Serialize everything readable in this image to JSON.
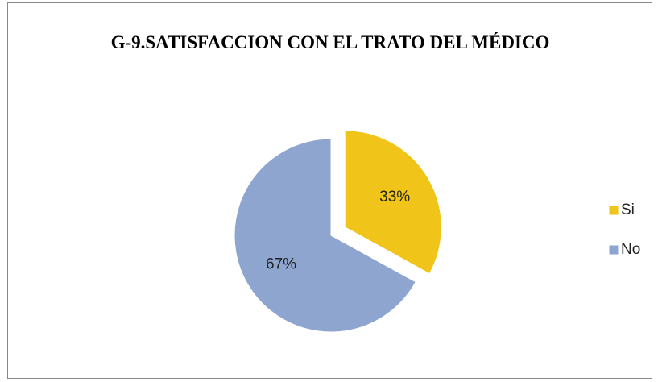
{
  "chart_data": {
    "type": "pie",
    "title": "G-9.SATISFACCION CON EL TRATO DEL MÉDICO",
    "categories": [
      "Si",
      "No"
    ],
    "values": [
      33,
      67
    ],
    "value_labels": [
      "33%",
      "67%"
    ],
    "colors": [
      "#f0c419",
      "#8ea5d0"
    ],
    "legend": "right"
  }
}
